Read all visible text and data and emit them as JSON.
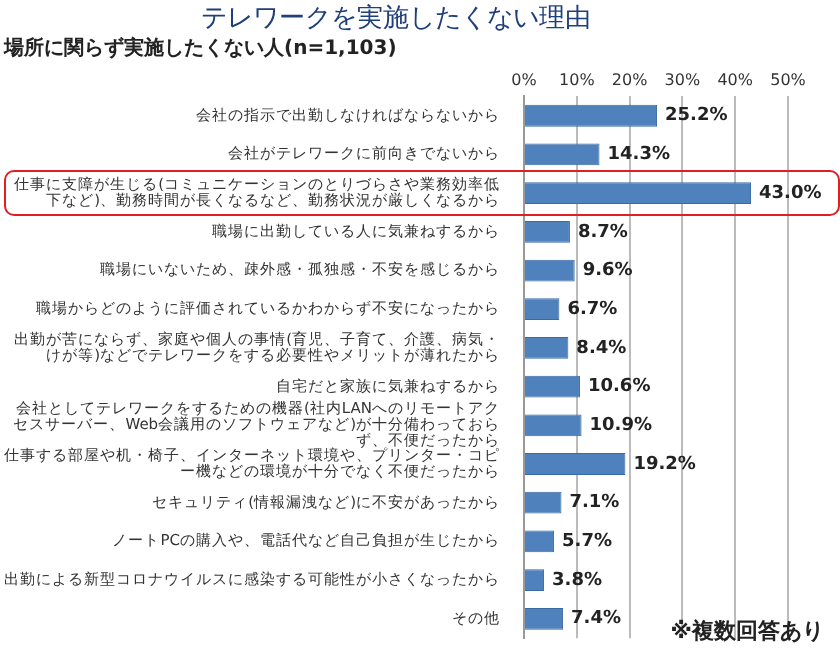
{
  "chart_data": {
    "type": "bar",
    "orientation": "horizontal",
    "title": "テレワークを実施したくない理由",
    "subtitle": "場所に関らず実施したくない人(n=1,103)",
    "categories": [
      "会社の指示で出勤しなければならないから",
      "会社がテレワークに前向きでないから",
      "仕事に支障が生じる(コミュニケーションのとりづらさや業務効率低下など)、勤務時間が長くなるなど、勤務状況が厳しくなるから",
      "職場に出勤している人に気兼ねするから",
      "職場にいないため、疎外感・孤独感・不安を感じるから",
      "職場からどのように評価されているかわからず不安になったから",
      "出勤が苦にならず、家庭や個人の事情(育児、子育て、介護、病気・けが等)などでテレワークをする必要性やメリットが薄れたから",
      "自宅だと家族に気兼ねするから",
      "会社としてテレワークをするための機器(社内LANへのリモートアクセスサーバー、Web会議用のソフトウェアなど)が十分備わっておらず、不便だったから",
      "仕事する部屋や机・椅子、インターネット環境や、プリンター・コピー機などの環境が十分でなく不便だったから",
      "セキュリティ(情報漏洩など)に不安があったから",
      "ノートPCの購入や、電話代など自己負担が生じたから",
      "出勤による新型コロナウイルスに感染する可能性が小さくなったから",
      "その他"
    ],
    "values": [
      25.2,
      14.3,
      43.0,
      8.7,
      9.6,
      6.7,
      8.4,
      10.6,
      10.9,
      19.2,
      7.1,
      5.7,
      3.8,
      7.4
    ],
    "value_labels": [
      "25.2%",
      "14.3%",
      "43.0%",
      "8.7%",
      "9.6%",
      "6.7%",
      "8.4%",
      "10.6%",
      "10.9%",
      "19.2%",
      "7.1%",
      "5.7%",
      "3.8%",
      "7.4%"
    ],
    "color": "#4f81bd",
    "xlim": [
      0,
      50
    ],
    "xticks": [
      {
        "value": 0,
        "label": "0%"
      },
      {
        "value": 10,
        "label": "10%"
      },
      {
        "value": 20,
        "label": "20%"
      },
      {
        "value": 30,
        "label": "30%"
      },
      {
        "value": 40,
        "label": "40%"
      },
      {
        "value": 50,
        "label": "50%"
      }
    ],
    "grid": "x",
    "annotations": [
      "※複数回答あり"
    ]
  }
}
